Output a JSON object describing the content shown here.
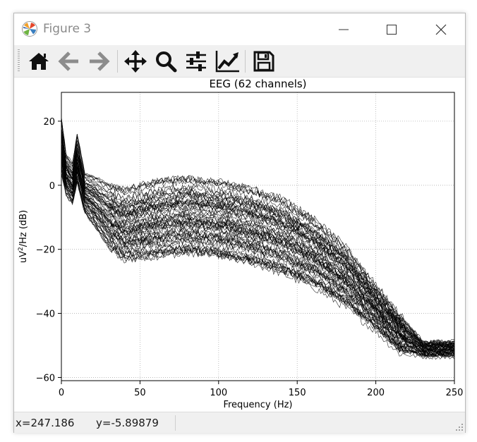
{
  "window": {
    "title": "Figure 3",
    "controls": [
      "minimize",
      "maximize",
      "close"
    ]
  },
  "toolbar": {
    "buttons": [
      {
        "name": "home",
        "icon": "home-icon"
      },
      {
        "name": "back",
        "icon": "back-arrow-icon"
      },
      {
        "name": "forward",
        "icon": "forward-arrow-icon"
      },
      {
        "name": "pan",
        "icon": "move-icon"
      },
      {
        "name": "zoom",
        "icon": "magnifier-icon"
      },
      {
        "name": "configure-subplots",
        "icon": "sliders-icon"
      },
      {
        "name": "edit-axis",
        "icon": "line-chart-icon"
      },
      {
        "name": "save",
        "icon": "floppy-disk-icon"
      }
    ]
  },
  "chart_data": {
    "type": "line",
    "title": "EEG (62 channels)",
    "xlabel": "Frequency (Hz)",
    "ylabel_base": "uV",
    "ylabel_sup": "2",
    "ylabel_rest": "/Hz (dB)",
    "xlim": [
      0,
      250
    ],
    "ylim": [
      -61,
      29
    ],
    "xticks": [
      0,
      50,
      100,
      150,
      200,
      250
    ],
    "yticks": [
      -60,
      -40,
      -20,
      0,
      20
    ],
    "grid": true,
    "line_color": "#000000",
    "channel_count": 62,
    "profile": {
      "frequency": [
        0,
        3,
        7,
        10,
        15,
        20,
        30,
        40,
        60,
        80,
        100,
        120,
        140,
        160,
        180,
        200,
        215,
        230,
        240,
        250
      ],
      "median_db": [
        12,
        3,
        0,
        8,
        -3,
        -5,
        -10,
        -13,
        -11,
        -10,
        -11,
        -13,
        -16,
        -21,
        -28,
        -38,
        -46,
        -51,
        -51,
        -51
      ],
      "spread_db": [
        7,
        5,
        5,
        6,
        5,
        6,
        8,
        9,
        10,
        10,
        10,
        10,
        10,
        9,
        8,
        6,
        5,
        2,
        2,
        2
      ]
    }
  },
  "status": {
    "x_readout": "x=247.186",
    "y_readout": "y=-5.89879"
  }
}
